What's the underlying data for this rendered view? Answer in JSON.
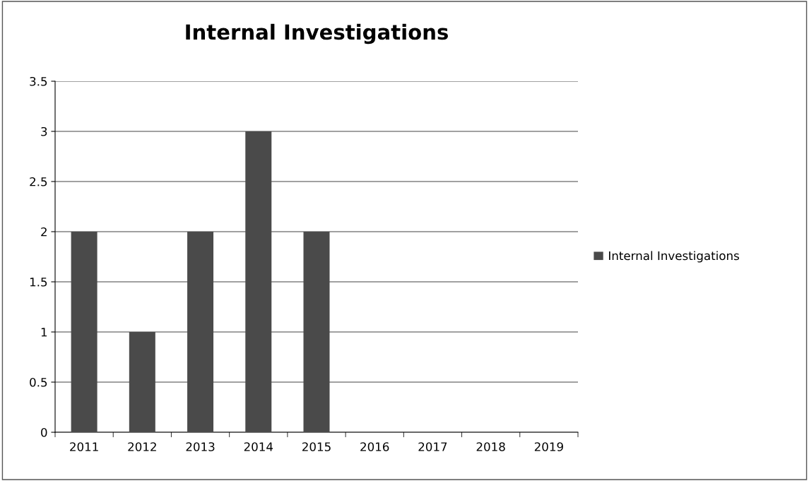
{
  "chart_data": {
    "type": "bar",
    "title": "Internal Investigations",
    "categories": [
      "2011",
      "2012",
      "2013",
      "2014",
      "2015",
      "2016",
      "2017",
      "2018",
      "2019"
    ],
    "series": [
      {
        "name": "Internal Investigations",
        "color": "#4a4a4a",
        "values": [
          2,
          1,
          2,
          3,
          2,
          null,
          null,
          null,
          null
        ]
      }
    ],
    "ylim": [
      0,
      3.5
    ],
    "yticks": [
      0,
      0.5,
      1,
      1.5,
      2,
      2.5,
      3,
      3.5
    ],
    "grid": "y",
    "legend": "right"
  }
}
